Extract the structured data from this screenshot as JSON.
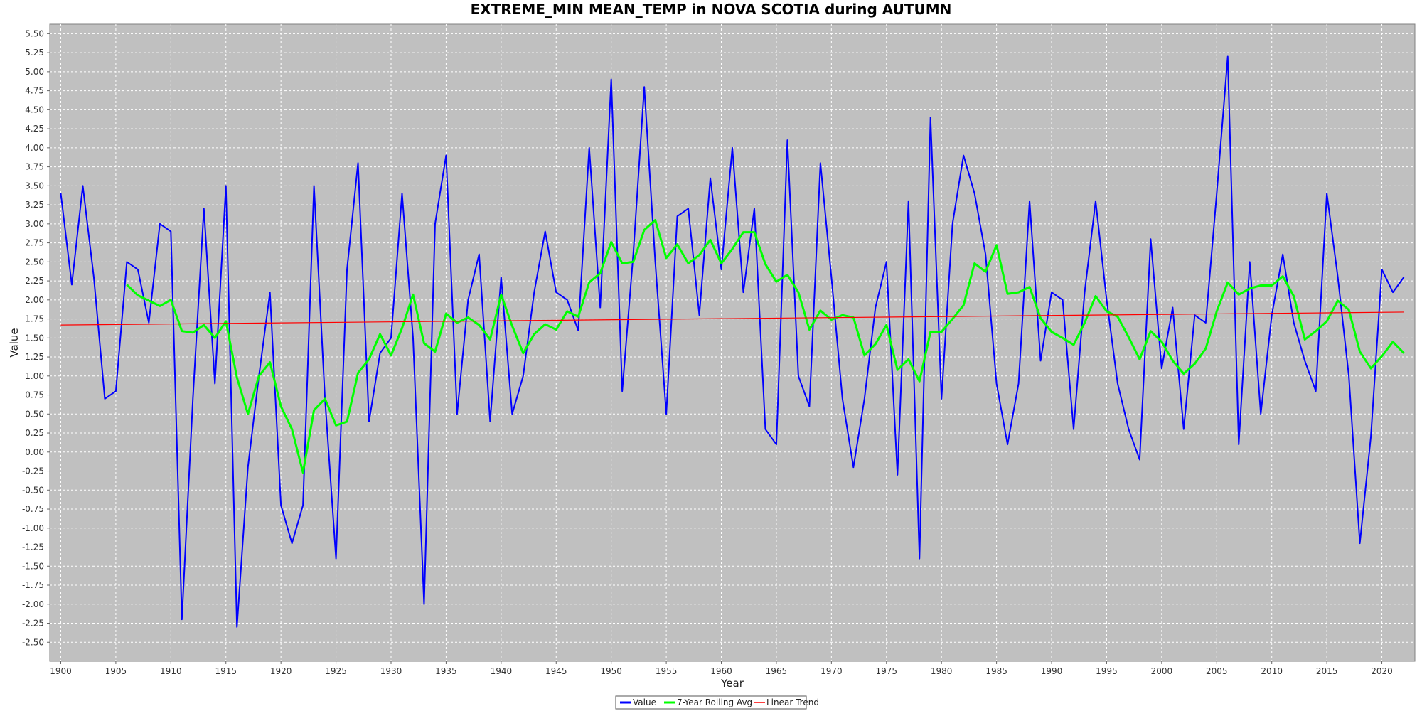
{
  "chart_data": {
    "type": "line",
    "title": "EXTREME_MIN MEAN_TEMP in NOVA SCOTIA during AUTUMN",
    "xlabel": "Year",
    "ylabel": "Value",
    "xlim": [
      1899,
      2023
    ],
    "ylim": [
      -2.75,
      5.625
    ],
    "x_ticks": [
      1900,
      1905,
      1910,
      1915,
      1920,
      1925,
      1930,
      1935,
      1940,
      1945,
      1950,
      1955,
      1960,
      1965,
      1970,
      1975,
      1980,
      1985,
      1990,
      1995,
      2000,
      2005,
      2010,
      2015,
      2020
    ],
    "y_ticks": [
      -2.5,
      -2.25,
      -2,
      -1.75,
      -1.5,
      -1.25,
      -1,
      -0.75,
      -0.5,
      -0.25,
      0,
      0.25,
      0.5,
      0.75,
      1,
      1.25,
      1.5,
      1.75,
      2,
      2.25,
      2.5,
      2.75,
      3,
      3.25,
      3.5,
      3.75,
      4,
      4.25,
      4.5,
      4.75,
      5,
      5.25,
      5.5
    ],
    "y_tick_labels": [
      "-2.50",
      "-2.25",
      "-2.00",
      "-1.75",
      "-1.50",
      "-1.25",
      "-1.00",
      "-0.75",
      "-0.50",
      "-0.25",
      "0.00",
      "0.25",
      "0.50",
      "0.75",
      "1.00",
      "1.25",
      "1.50",
      "1.75",
      "2.00",
      "2.25",
      "2.50",
      "2.75",
      "3.00",
      "3.25",
      "3.50",
      "3.75",
      "4.00",
      "4.25",
      "4.50",
      "4.75",
      "5.00",
      "5.25",
      "5.50"
    ],
    "grid": true,
    "legend_position": "bottom-center",
    "background": "#c0c0c0",
    "series": [
      {
        "name": "Value",
        "color": "#0000ff",
        "x_start": 1900,
        "values": [
          3.4,
          2.2,
          3.5,
          2.3,
          0.7,
          0.8,
          2.5,
          2.4,
          1.7,
          3.0,
          2.9,
          -2.2,
          0.7,
          3.2,
          0.9,
          3.5,
          -2.3,
          -0.2,
          1.0,
          2.1,
          -0.7,
          -1.2,
          -0.7,
          3.5,
          0.7,
          -1.4,
          2.4,
          3.8,
          0.4,
          1.3,
          1.5,
          3.4,
          1.5,
          -2.0,
          3.0,
          3.9,
          0.5,
          2.0,
          2.6,
          0.4,
          2.3,
          0.5,
          1.0,
          2.1,
          2.9,
          2.1,
          2.0,
          1.6,
          4.0,
          1.9,
          4.9,
          0.8,
          2.6,
          4.8,
          2.5,
          0.5,
          3.1,
          3.2,
          1.8,
          3.6,
          2.4,
          4.0,
          2.1,
          3.2,
          0.3,
          0.1,
          4.1,
          1.0,
          0.6,
          3.8,
          2.3,
          0.7,
          -0.2,
          0.7,
          1.9,
          2.5,
          -0.3,
          3.3,
          -1.4,
          4.4,
          0.7,
          3.0,
          3.9,
          3.4,
          2.6,
          0.9,
          0.1,
          0.9,
          3.3,
          1.2,
          2.1,
          2.0,
          0.3,
          2.1,
          3.3,
          2.0,
          0.9,
          0.3,
          -0.1,
          2.8,
          1.1,
          1.9,
          0.3,
          1.8,
          1.7,
          3.4,
          5.2,
          0.1,
          2.5,
          0.5,
          1.8,
          2.6,
          1.7,
          1.2,
          0.8,
          3.4,
          2.3,
          1.0,
          -1.2,
          0.2,
          2.4,
          2.1,
          2.3
        ]
      },
      {
        "name": "7-Year Rolling Avg",
        "color": "#00ff00",
        "x_start": 1906,
        "values": [
          2.2,
          2.06,
          1.99,
          1.92,
          2.0,
          1.59,
          1.57,
          1.67,
          1.5,
          1.72,
          0.98,
          0.5,
          1.0,
          1.18,
          0.6,
          0.3,
          -0.27,
          0.55,
          0.7,
          0.35,
          0.4,
          1.04,
          1.22,
          1.55,
          1.27,
          1.63,
          2.07,
          1.43,
          1.32,
          1.82,
          1.7,
          1.77,
          1.67,
          1.48,
          2.07,
          1.66,
          1.3,
          1.55,
          1.68,
          1.61,
          1.85,
          1.78,
          2.23,
          2.35,
          2.76,
          2.48,
          2.5,
          2.92,
          3.05,
          2.55,
          2.73,
          2.48,
          2.59,
          2.79,
          2.48,
          2.67,
          2.89,
          2.89,
          2.47,
          2.24,
          2.33,
          2.1,
          1.61,
          1.86,
          1.74,
          1.8,
          1.77,
          1.27,
          1.42,
          1.67,
          1.08,
          1.22,
          0.93,
          1.58,
          1.58,
          1.75,
          1.93,
          2.48,
          2.37,
          2.72,
          2.08,
          2.1,
          2.17,
          1.76,
          1.58,
          1.5,
          1.41,
          1.7,
          2.05,
          1.85,
          1.78,
          1.51,
          1.22,
          1.59,
          1.45,
          1.2,
          1.03,
          1.16,
          1.36,
          1.85,
          2.23,
          2.07,
          2.15,
          2.19,
          2.19,
          2.31,
          2.05,
          1.48,
          1.59,
          1.72,
          1.99,
          1.87,
          1.32,
          1.1,
          1.26,
          1.45,
          1.3
        ]
      },
      {
        "name": "Linear Trend",
        "color": "#ff0000",
        "x": [
          1900,
          2022
        ],
        "values": [
          1.67,
          1.84
        ]
      }
    ]
  }
}
